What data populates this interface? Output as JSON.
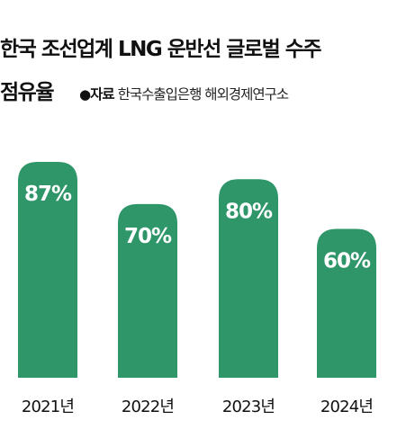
{
  "title_line1": "한국 조선업계 LNG 운반선 글로벌 수주",
  "title_line2": "점유율",
  "source_label": "자료",
  "source_text": "한국수출입은행 해외경제연구소",
  "colors": {
    "bar": "#2e9669",
    "value_label": "#ffffff",
    "text": "#111111"
  },
  "chart_data": {
    "type": "bar",
    "title": "한국 조선업계 LNG 운반선 글로벌 수주 점유율",
    "categories": [
      "2021년",
      "2022년",
      "2023년",
      "2024년"
    ],
    "values": [
      87,
      70,
      80,
      60
    ],
    "value_labels": [
      "87%",
      "70%",
      "80%",
      "60%"
    ],
    "ylim": [
      0,
      100
    ],
    "xlabel": "",
    "ylabel": "",
    "grid": false
  }
}
